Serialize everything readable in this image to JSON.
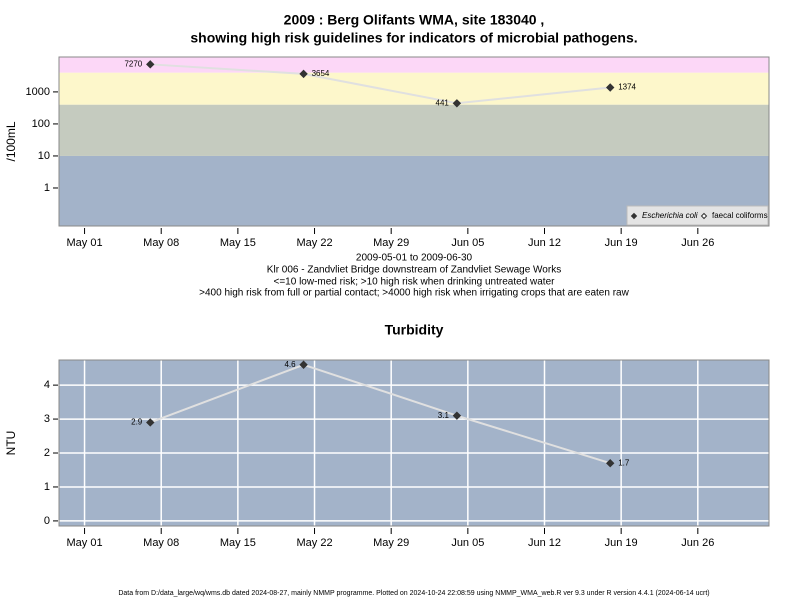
{
  "chart_data": [
    {
      "type": "line",
      "title": [
        "2009 : Berg Olifants WMA, site 183040 ,",
        "showing high risk guidelines for indicators of microbial pathogens."
      ],
      "subtitle": [
        "2009-05-01 to 2009-06-30",
        "Klr 006 - Zandvliet Bridge downstream of Zandvliet Sewage Works",
        "<=10 low-med risk; >10 high risk when drinking untreated water",
        ">400 high risk from full or partial contact; >4000 high risk when irrigating crops that are eaten raw"
      ],
      "y_label": "/100mL",
      "log_scale": true,
      "grid": false,
      "x": [
        "2009-05-07",
        "2009-05-21",
        "2009-06-04",
        "2009-06-18"
      ],
      "series": [
        {
          "name": "Escherichia coli",
          "color": "#333333",
          "values": [
            7270,
            3654,
            441,
            1374
          ]
        },
        {
          "name": "faecal coliforms",
          "color": "#ffffff",
          "values": [
            null,
            null,
            null,
            null
          ]
        }
      ],
      "line_color": "#e0e0e0",
      "thresholds": [
        10,
        400,
        4000
      ],
      "band_colors": [
        "#a3b3c9",
        "#c5cbbf",
        "#fdf7cb",
        "#fcd7f7"
      ],
      "xlim": [
        "2009-04-28T16:00",
        "2009-07-02T12:00"
      ],
      "xticks": [
        {
          "value": "2009-05-01",
          "label": "May 01"
        },
        {
          "value": "2009-05-08",
          "label": "May 08"
        },
        {
          "value": "2009-05-15",
          "label": "May 15"
        },
        {
          "value": "2009-05-22",
          "label": "May 22"
        },
        {
          "value": "2009-05-29",
          "label": "May 29"
        },
        {
          "value": "2009-06-05",
          "label": "Jun 05"
        },
        {
          "value": "2009-06-12",
          "label": "Jun 12"
        },
        {
          "value": "2009-06-19",
          "label": "Jun 19"
        },
        {
          "value": "2009-06-26",
          "label": "Jun 26"
        }
      ],
      "ylim": [
        0.065,
        12300
      ],
      "yticks": [
        1,
        10,
        100,
        1000
      ],
      "legend": "bottom-right"
    },
    {
      "type": "line",
      "title": "Turbidity",
      "y_label": "NTU",
      "log_scale": false,
      "grid": true,
      "background": "#a3b3c9",
      "x": [
        "2009-05-07",
        "2009-05-21",
        "2009-06-04",
        "2009-06-18"
      ],
      "series": [
        {
          "name": "Turbidity",
          "color": "#333333",
          "values": [
            2.9,
            4.6,
            3.1,
            1.7
          ]
        }
      ],
      "line_color": "#e0e0e0",
      "xlim": [
        "2009-04-28T16:00",
        "2009-07-02T12:00"
      ],
      "xticks": [
        {
          "value": "2009-05-01",
          "label": "May 01"
        },
        {
          "value": "2009-05-08",
          "label": "May 08"
        },
        {
          "value": "2009-05-15",
          "label": "May 15"
        },
        {
          "value": "2009-05-22",
          "label": "May 22"
        },
        {
          "value": "2009-05-29",
          "label": "May 29"
        },
        {
          "value": "2009-06-05",
          "label": "Jun 05"
        },
        {
          "value": "2009-06-12",
          "label": "Jun 12"
        },
        {
          "value": "2009-06-19",
          "label": "Jun 19"
        },
        {
          "value": "2009-06-26",
          "label": "Jun 26"
        }
      ],
      "ylim": [
        -0.15,
        4.74
      ],
      "yticks": [
        0,
        1,
        2,
        3,
        4
      ]
    }
  ],
  "footer": "Data from D:/data_large/wq/wms.db dated 2024-08-27, mainly NMMP programme. Plotted on 2024-10-24 22:08:59 using NMMP_WMA_web.R ver 9.3 under R version 4.4.1 (2024-06-14 ucrt)"
}
